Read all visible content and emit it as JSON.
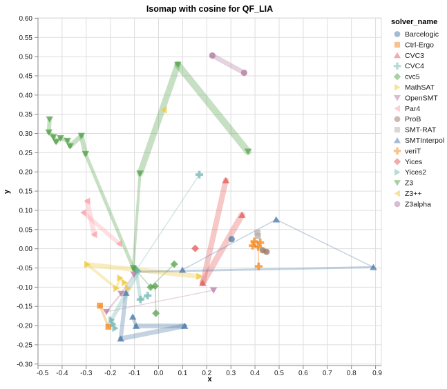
{
  "title": "Isomap with cosine for QF_LIA",
  "legend": {
    "title": "solver_name"
  },
  "axes": {
    "x_label": "x",
    "y_label": "y",
    "x_tick_values": [
      -0.5,
      -0.4,
      -0.3,
      -0.2,
      -0.1,
      0.0,
      0.1,
      0.2,
      0.3,
      0.4,
      0.5,
      0.6,
      0.7,
      0.8,
      0.9
    ],
    "x_tick_labels": [
      "-0.5",
      "-0.4",
      "-0.3",
      "-0.2",
      "-0.1",
      "0.0",
      "0.1",
      "0.2",
      "0.3",
      "0.4",
      "0.5",
      "0.6",
      "0.7",
      "0.8",
      "0.9"
    ],
    "y_tick_values": [
      0.6,
      0.55,
      0.5,
      0.45,
      0.4,
      0.35,
      0.3,
      0.25,
      0.2,
      0.15,
      0.1,
      0.05,
      0.0,
      -0.05,
      -0.1,
      -0.15,
      -0.2,
      -0.25,
      -0.3
    ],
    "y_tick_labels": [
      "0.60",
      "0.55",
      "0.50",
      "0.45",
      "0.40",
      "0.35",
      "0.30",
      "0.25",
      "0.20",
      "0.15",
      "0.10",
      "0.05",
      "0.00",
      "-0.05",
      "-0.10",
      "-0.15",
      "-0.20",
      "-0.25",
      "-0.30"
    ]
  },
  "style": {
    "grid_color": "#dddddd",
    "domain_color": "#888888",
    "label_color": "#1a1a1a",
    "marker_opacity": 0.75,
    "trail_opacity": 0.32,
    "legend_marker_opacity": 0.5
  },
  "chart_data": {
    "type": "scatter",
    "title": "Isomap with cosine for QF_LIA",
    "xlabel": "x",
    "ylabel": "y",
    "xlim": [
      -0.5,
      0.92
    ],
    "ylim": [
      -0.305,
      0.6
    ],
    "grid": true,
    "legend_position": "right",
    "legend_title": "solver_name",
    "series": [
      {
        "name": "Barcelogic",
        "shape": "circle",
        "color": "#4c78a8",
        "points": [
          [
            0.303,
            0.025
          ]
        ],
        "trail": []
      },
      {
        "name": "Ctrl-Ergo",
        "shape": "square",
        "color": "#f58518",
        "points": [
          [
            -0.243,
            -0.148
          ],
          [
            -0.208,
            -0.203
          ]
        ],
        "trail": [
          [
            -0.243,
            -0.148,
            -0.208,
            -0.203,
            3.5
          ]
        ]
      },
      {
        "name": "CVC3",
        "shape": "triangle-up",
        "color": "#e45756",
        "points": [
          [
            0.279,
            0.178
          ],
          [
            0.183,
            -0.089
          ],
          [
            0.346,
            0.088
          ]
        ],
        "trail": [
          [
            0.279,
            0.178,
            0.183,
            -0.089,
            8
          ],
          [
            0.183,
            -0.089,
            0.346,
            0.088,
            9
          ]
        ]
      },
      {
        "name": "CVC4",
        "shape": "cross",
        "color": "#72b7b2",
        "points": [
          [
            0.169,
            0.193
          ],
          [
            -0.093,
            -0.056
          ],
          [
            -0.075,
            -0.132
          ],
          [
            -0.045,
            -0.122
          ]
        ],
        "trail": [
          [
            0.169,
            0.193,
            -0.093,
            -0.056,
            1.5
          ],
          [
            -0.093,
            -0.056,
            -0.075,
            -0.132,
            5
          ],
          [
            -0.075,
            -0.132,
            -0.045,
            -0.122,
            3.5
          ]
        ]
      },
      {
        "name": "cvc5",
        "shape": "diamond",
        "color": "#54a24b",
        "points": [
          [
            0.065,
            -0.04
          ],
          [
            -0.097,
            -0.053
          ],
          [
            -0.033,
            -0.1
          ],
          [
            -0.014,
            -0.097
          ],
          [
            -0.011,
            -0.168
          ]
        ],
        "trail": [
          [
            0.065,
            -0.04,
            -0.033,
            -0.1,
            1.8
          ],
          [
            -0.033,
            -0.1,
            -0.014,
            -0.097,
            1.8
          ],
          [
            -0.014,
            -0.097,
            -0.011,
            -0.168,
            1.8
          ],
          [
            -0.097,
            -0.053,
            -0.033,
            -0.1,
            1.8
          ]
        ]
      },
      {
        "name": "MathSAT",
        "shape": "triangle-right",
        "color": "#eeca3b",
        "points": [
          [
            -0.296,
            -0.041
          ],
          [
            -0.175,
            -0.103
          ],
          [
            -0.16,
            -0.076
          ],
          [
            -0.141,
            -0.088
          ],
          [
            -0.127,
            -0.103
          ],
          [
            0.169,
            -0.072
          ]
        ],
        "trail": [
          [
            -0.296,
            -0.041,
            0.169,
            -0.072,
            7
          ],
          [
            -0.296,
            -0.041,
            -0.175,
            -0.103,
            4
          ],
          [
            -0.175,
            -0.103,
            -0.16,
            -0.076,
            4
          ],
          [
            -0.16,
            -0.076,
            -0.141,
            -0.088,
            4
          ],
          [
            -0.141,
            -0.088,
            -0.127,
            -0.103,
            4
          ]
        ]
      },
      {
        "name": "OpenSMT",
        "shape": "triangle-down",
        "color": "#b279a2",
        "points": [
          [
            -0.216,
            -0.164
          ],
          [
            -0.155,
            -0.117
          ],
          [
            -0.102,
            -0.067
          ],
          [
            0.228,
            -0.108
          ]
        ],
        "trail": [
          [
            -0.216,
            -0.164,
            0.228,
            -0.108,
            1.4
          ],
          [
            -0.216,
            -0.164,
            -0.155,
            -0.117,
            2.5
          ],
          [
            -0.155,
            -0.117,
            -0.102,
            -0.067,
            2.5
          ]
        ]
      },
      {
        "name": "Par4",
        "shape": "triangle-left",
        "color": "#ff9da6",
        "points": [
          [
            -0.296,
            0.124
          ],
          [
            -0.311,
            0.094
          ],
          [
            -0.267,
            0.037
          ],
          [
            -0.163,
            0.013
          ]
        ],
        "trail": [
          [
            -0.296,
            0.124,
            -0.267,
            0.037,
            7
          ],
          [
            -0.311,
            0.094,
            -0.163,
            0.013,
            6
          ]
        ]
      },
      {
        "name": "ProB",
        "shape": "circle",
        "color": "#9d755d",
        "points": [
          [
            0.432,
            -0.004
          ],
          [
            0.448,
            -0.008
          ]
        ],
        "trail": [
          [
            0.432,
            -0.004,
            0.448,
            -0.008,
            5
          ]
        ]
      },
      {
        "name": "SMT-RAT",
        "shape": "square",
        "color": "#bab0ac",
        "points": [
          [
            0.41,
            0.042
          ],
          [
            0.412,
            0.033
          ]
        ],
        "trail": [
          [
            0.41,
            0.042,
            0.412,
            0.033,
            4
          ]
        ]
      },
      {
        "name": "SMTInterpol",
        "shape": "triangle-up",
        "color": "#4c78a8",
        "points": [
          [
            -0.135,
            -0.115
          ],
          [
            -0.157,
            -0.234
          ],
          [
            -0.107,
            -0.177
          ],
          [
            -0.093,
            -0.201
          ],
          [
            0.108,
            -0.201
          ],
          [
            0.099,
            -0.055
          ],
          [
            0.488,
            0.076
          ],
          [
            0.891,
            -0.048
          ]
        ],
        "trail": [
          [
            -0.135,
            -0.115,
            -0.157,
            -0.234,
            6
          ],
          [
            -0.157,
            -0.234,
            0.108,
            -0.201,
            7
          ],
          [
            0.108,
            -0.201,
            -0.093,
            -0.201,
            7
          ],
          [
            -0.093,
            -0.201,
            -0.107,
            -0.177,
            5
          ],
          [
            0.099,
            -0.055,
            0.488,
            0.076,
            1.5
          ],
          [
            0.488,
            0.076,
            0.891,
            -0.048,
            1.5
          ],
          [
            0.891,
            -0.048,
            -0.095,
            -0.06,
            3
          ]
        ]
      },
      {
        "name": "veriT",
        "shape": "cross",
        "color": "#f58518",
        "points": [
          [
            0.397,
            0.019
          ],
          [
            0.422,
            0.016
          ],
          [
            0.39,
            0.008
          ],
          [
            0.413,
            0.005
          ],
          [
            0.415,
            -0.046
          ]
        ],
        "trail": [
          [
            0.397,
            0.019,
            0.422,
            0.016,
            3
          ],
          [
            0.39,
            0.008,
            0.413,
            0.005,
            3
          ],
          [
            0.413,
            0.005,
            0.415,
            -0.046,
            2
          ]
        ]
      },
      {
        "name": "Yices",
        "shape": "diamond",
        "color": "#e45756",
        "points": [
          [
            0.152,
            0.001
          ]
        ],
        "trail": []
      },
      {
        "name": "Yices2",
        "shape": "triangle-right",
        "color": "#72b7b2",
        "points": [
          [
            -0.083,
            -0.058
          ],
          [
            -0.195,
            -0.185
          ],
          [
            -0.188,
            -0.196
          ],
          [
            -0.18,
            -0.207
          ]
        ],
        "trail": [
          [
            -0.083,
            -0.058,
            -0.195,
            -0.185,
            6
          ],
          [
            -0.195,
            -0.185,
            -0.18,
            -0.207,
            5
          ]
        ]
      },
      {
        "name": "Z3",
        "shape": "triangle-down",
        "color": "#54a24b",
        "points": [
          [
            -0.452,
            0.337
          ],
          [
            -0.455,
            0.303
          ],
          [
            -0.436,
            0.291
          ],
          [
            -0.425,
            0.278
          ],
          [
            -0.407,
            0.288
          ],
          [
            -0.378,
            0.281
          ],
          [
            -0.367,
            0.267
          ],
          [
            -0.32,
            0.294
          ],
          [
            -0.303,
            0.247
          ],
          [
            -0.105,
            -0.05
          ],
          [
            -0.077,
            0.196
          ],
          [
            0.08,
            0.479
          ],
          [
            0.371,
            0.253
          ]
        ],
        "trail": [
          [
            -0.452,
            0.337,
            -0.455,
            0.303,
            6
          ],
          [
            -0.455,
            0.303,
            -0.436,
            0.291,
            6
          ],
          [
            -0.436,
            0.291,
            -0.425,
            0.278,
            6
          ],
          [
            -0.425,
            0.278,
            -0.407,
            0.288,
            6
          ],
          [
            -0.407,
            0.288,
            -0.378,
            0.281,
            6
          ],
          [
            -0.378,
            0.281,
            -0.367,
            0.267,
            6
          ],
          [
            -0.367,
            0.267,
            -0.32,
            0.294,
            7
          ],
          [
            -0.32,
            0.294,
            -0.303,
            0.247,
            7
          ],
          [
            -0.303,
            0.247,
            -0.105,
            -0.05,
            5
          ],
          [
            -0.105,
            -0.05,
            -0.077,
            0.196,
            4
          ],
          [
            -0.077,
            0.196,
            0.08,
            0.479,
            9
          ],
          [
            0.08,
            0.479,
            0.371,
            0.253,
            10
          ]
        ]
      },
      {
        "name": "Z3++",
        "shape": "triangle-left",
        "color": "#eeca3b",
        "points": [
          [
            0.022,
            0.361
          ]
        ],
        "trail": []
      },
      {
        "name": "Z3alpha",
        "shape": "circle",
        "color": "#b279a2",
        "points": [
          [
            0.223,
            0.503
          ],
          [
            0.355,
            0.458
          ]
        ],
        "trail": [
          [
            0.223,
            0.503,
            0.355,
            0.458,
            7
          ]
        ]
      }
    ]
  }
}
